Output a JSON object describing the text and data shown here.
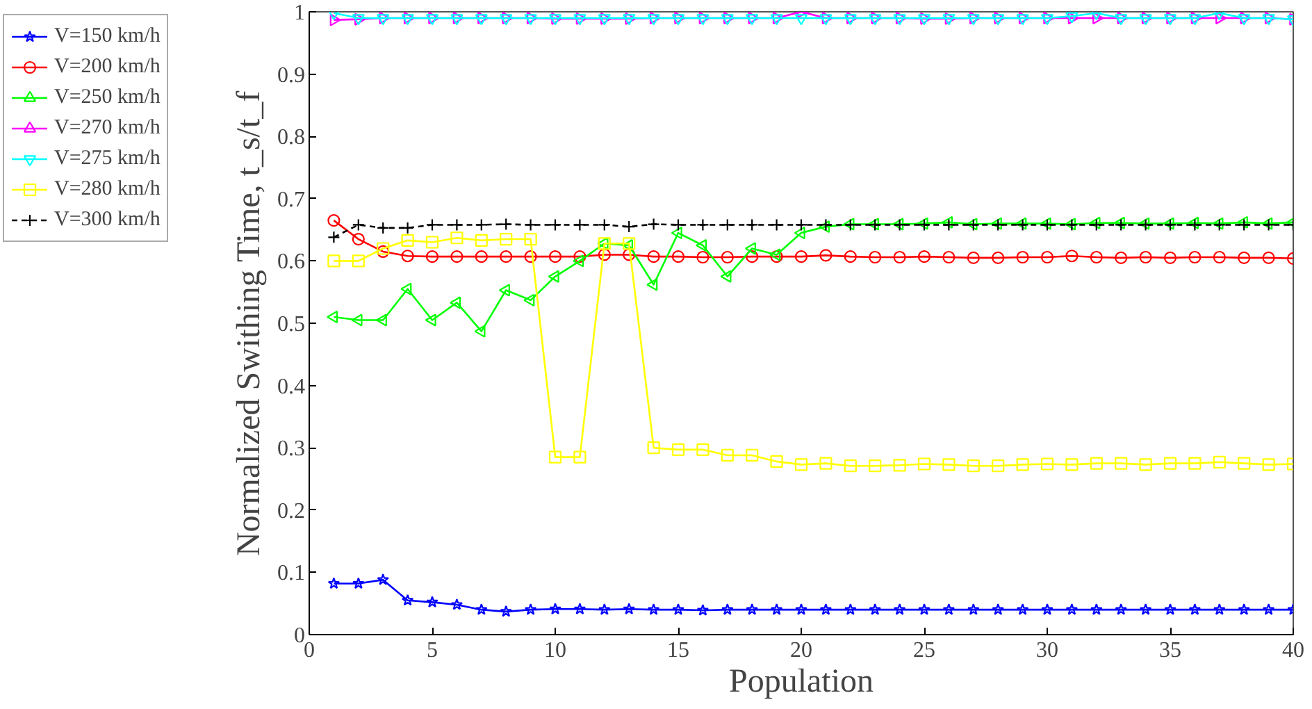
{
  "chart_data": {
    "type": "line",
    "xlabel": "Population",
    "ylabel": "Normalized Swithing Time, t_s/t_f",
    "x": [
      1,
      2,
      3,
      4,
      5,
      6,
      7,
      8,
      9,
      10,
      11,
      12,
      13,
      14,
      15,
      16,
      17,
      18,
      19,
      20,
      21,
      22,
      23,
      24,
      25,
      26,
      27,
      28,
      29,
      30,
      31,
      32,
      33,
      34,
      35,
      36,
      37,
      38,
      39,
      40
    ],
    "xlim": [
      0,
      40
    ],
    "xticks": [
      0,
      5,
      10,
      15,
      20,
      25,
      30,
      35,
      40
    ],
    "ylim": [
      0,
      1
    ],
    "yticks": [
      0,
      0.1,
      0.2,
      0.3,
      0.4,
      0.5,
      0.6,
      0.7,
      0.8,
      0.9,
      1
    ],
    "grid": false,
    "legend": "left",
    "series": [
      {
        "name": "V=150 km/h",
        "color": "#0000ff",
        "marker": "star",
        "line_style": "solid",
        "values": [
          0.082,
          0.082,
          0.088,
          0.055,
          0.052,
          0.048,
          0.04,
          0.037,
          0.04,
          0.041,
          0.041,
          0.04,
          0.041,
          0.04,
          0.04,
          0.039,
          0.04,
          0.04,
          0.04,
          0.04,
          0.04,
          0.04,
          0.04,
          0.04,
          0.04,
          0.04,
          0.04,
          0.04,
          0.04,
          0.04,
          0.04,
          0.04,
          0.04,
          0.04,
          0.04,
          0.04,
          0.04,
          0.04,
          0.04,
          0.04
        ]
      },
      {
        "name": "V=200 km/h",
        "color": "#ff0000",
        "marker": "circle",
        "line_style": "solid",
        "values": [
          0.665,
          0.635,
          0.615,
          0.608,
          0.607,
          0.607,
          0.607,
          0.607,
          0.607,
          0.607,
          0.607,
          0.61,
          0.61,
          0.607,
          0.607,
          0.606,
          0.606,
          0.607,
          0.607,
          0.607,
          0.609,
          0.607,
          0.606,
          0.606,
          0.607,
          0.606,
          0.605,
          0.605,
          0.606,
          0.606,
          0.608,
          0.606,
          0.605,
          0.606,
          0.605,
          0.606,
          0.606,
          0.605,
          0.605,
          0.604
        ]
      },
      {
        "name": "V=250 km/h",
        "color": "#00ff00",
        "marker": "triangle-left",
        "line_style": "solid",
        "values": [
          0.51,
          0.505,
          0.505,
          0.555,
          0.505,
          0.533,
          0.487,
          0.553,
          0.537,
          0.575,
          0.6,
          0.628,
          0.625,
          0.562,
          0.645,
          0.625,
          0.575,
          0.62,
          0.61,
          0.645,
          0.655,
          0.659,
          0.659,
          0.659,
          0.66,
          0.662,
          0.659,
          0.66,
          0.66,
          0.66,
          0.659,
          0.661,
          0.661,
          0.66,
          0.66,
          0.661,
          0.66,
          0.662,
          0.66,
          0.662
        ]
      },
      {
        "name": "V=270 km/h",
        "color": "#ff00ff",
        "marker": "triangle-right",
        "line_style": "solid",
        "values": [
          0.987,
          0.988,
          0.99,
          0.99,
          0.99,
          0.99,
          0.99,
          0.99,
          0.99,
          0.989,
          0.989,
          0.989,
          0.989,
          0.99,
          0.99,
          0.99,
          0.99,
          0.99,
          0.99,
          1.0,
          0.99,
          0.99,
          0.99,
          0.99,
          0.989,
          0.989,
          0.99,
          0.99,
          0.99,
          0.99,
          0.99,
          0.99,
          0.99,
          0.99,
          0.99,
          0.99,
          0.99,
          0.99,
          0.99,
          0.988
        ]
      },
      {
        "name": "V=275 km/h",
        "color": "#00ffff",
        "marker": "triangle-down",
        "line_style": "solid",
        "values": [
          0.998,
          0.99,
          0.99,
          0.99,
          0.99,
          0.99,
          0.99,
          0.99,
          0.99,
          0.99,
          0.99,
          0.99,
          0.99,
          0.99,
          0.99,
          0.99,
          0.99,
          0.99,
          0.99,
          0.99,
          0.99,
          0.99,
          0.99,
          0.99,
          0.99,
          0.99,
          0.99,
          0.99,
          0.99,
          0.99,
          0.993,
          0.998,
          0.99,
          0.99,
          0.99,
          0.99,
          0.998,
          0.99,
          0.99,
          0.988
        ]
      },
      {
        "name": "V=280 km/h",
        "color": "#ffff00",
        "marker": "square",
        "line_style": "solid",
        "values": [
          0.6,
          0.6,
          0.62,
          0.633,
          0.63,
          0.637,
          0.633,
          0.635,
          0.635,
          0.285,
          0.285,
          0.628,
          0.628,
          0.3,
          0.297,
          0.297,
          0.288,
          0.288,
          0.278,
          0.273,
          0.275,
          0.271,
          0.271,
          0.272,
          0.274,
          0.273,
          0.271,
          0.271,
          0.273,
          0.274,
          0.273,
          0.275,
          0.275,
          0.273,
          0.275,
          0.275,
          0.277,
          0.275,
          0.273,
          0.274
        ]
      },
      {
        "name": "V=300 km/h",
        "color": "#000000",
        "marker": "cross",
        "line_style": "dashed",
        "values": [
          0.638,
          0.658,
          0.653,
          0.653,
          0.658,
          0.658,
          0.658,
          0.659,
          0.658,
          0.658,
          0.658,
          0.658,
          0.655,
          0.659,
          0.658,
          0.658,
          0.658,
          0.658,
          0.658,
          0.658,
          0.658,
          0.658,
          0.658,
          0.658,
          0.658,
          0.658,
          0.658,
          0.658,
          0.658,
          0.658,
          0.658,
          0.658,
          0.658,
          0.658,
          0.658,
          0.658,
          0.658,
          0.658,
          0.658,
          0.658
        ]
      }
    ]
  }
}
